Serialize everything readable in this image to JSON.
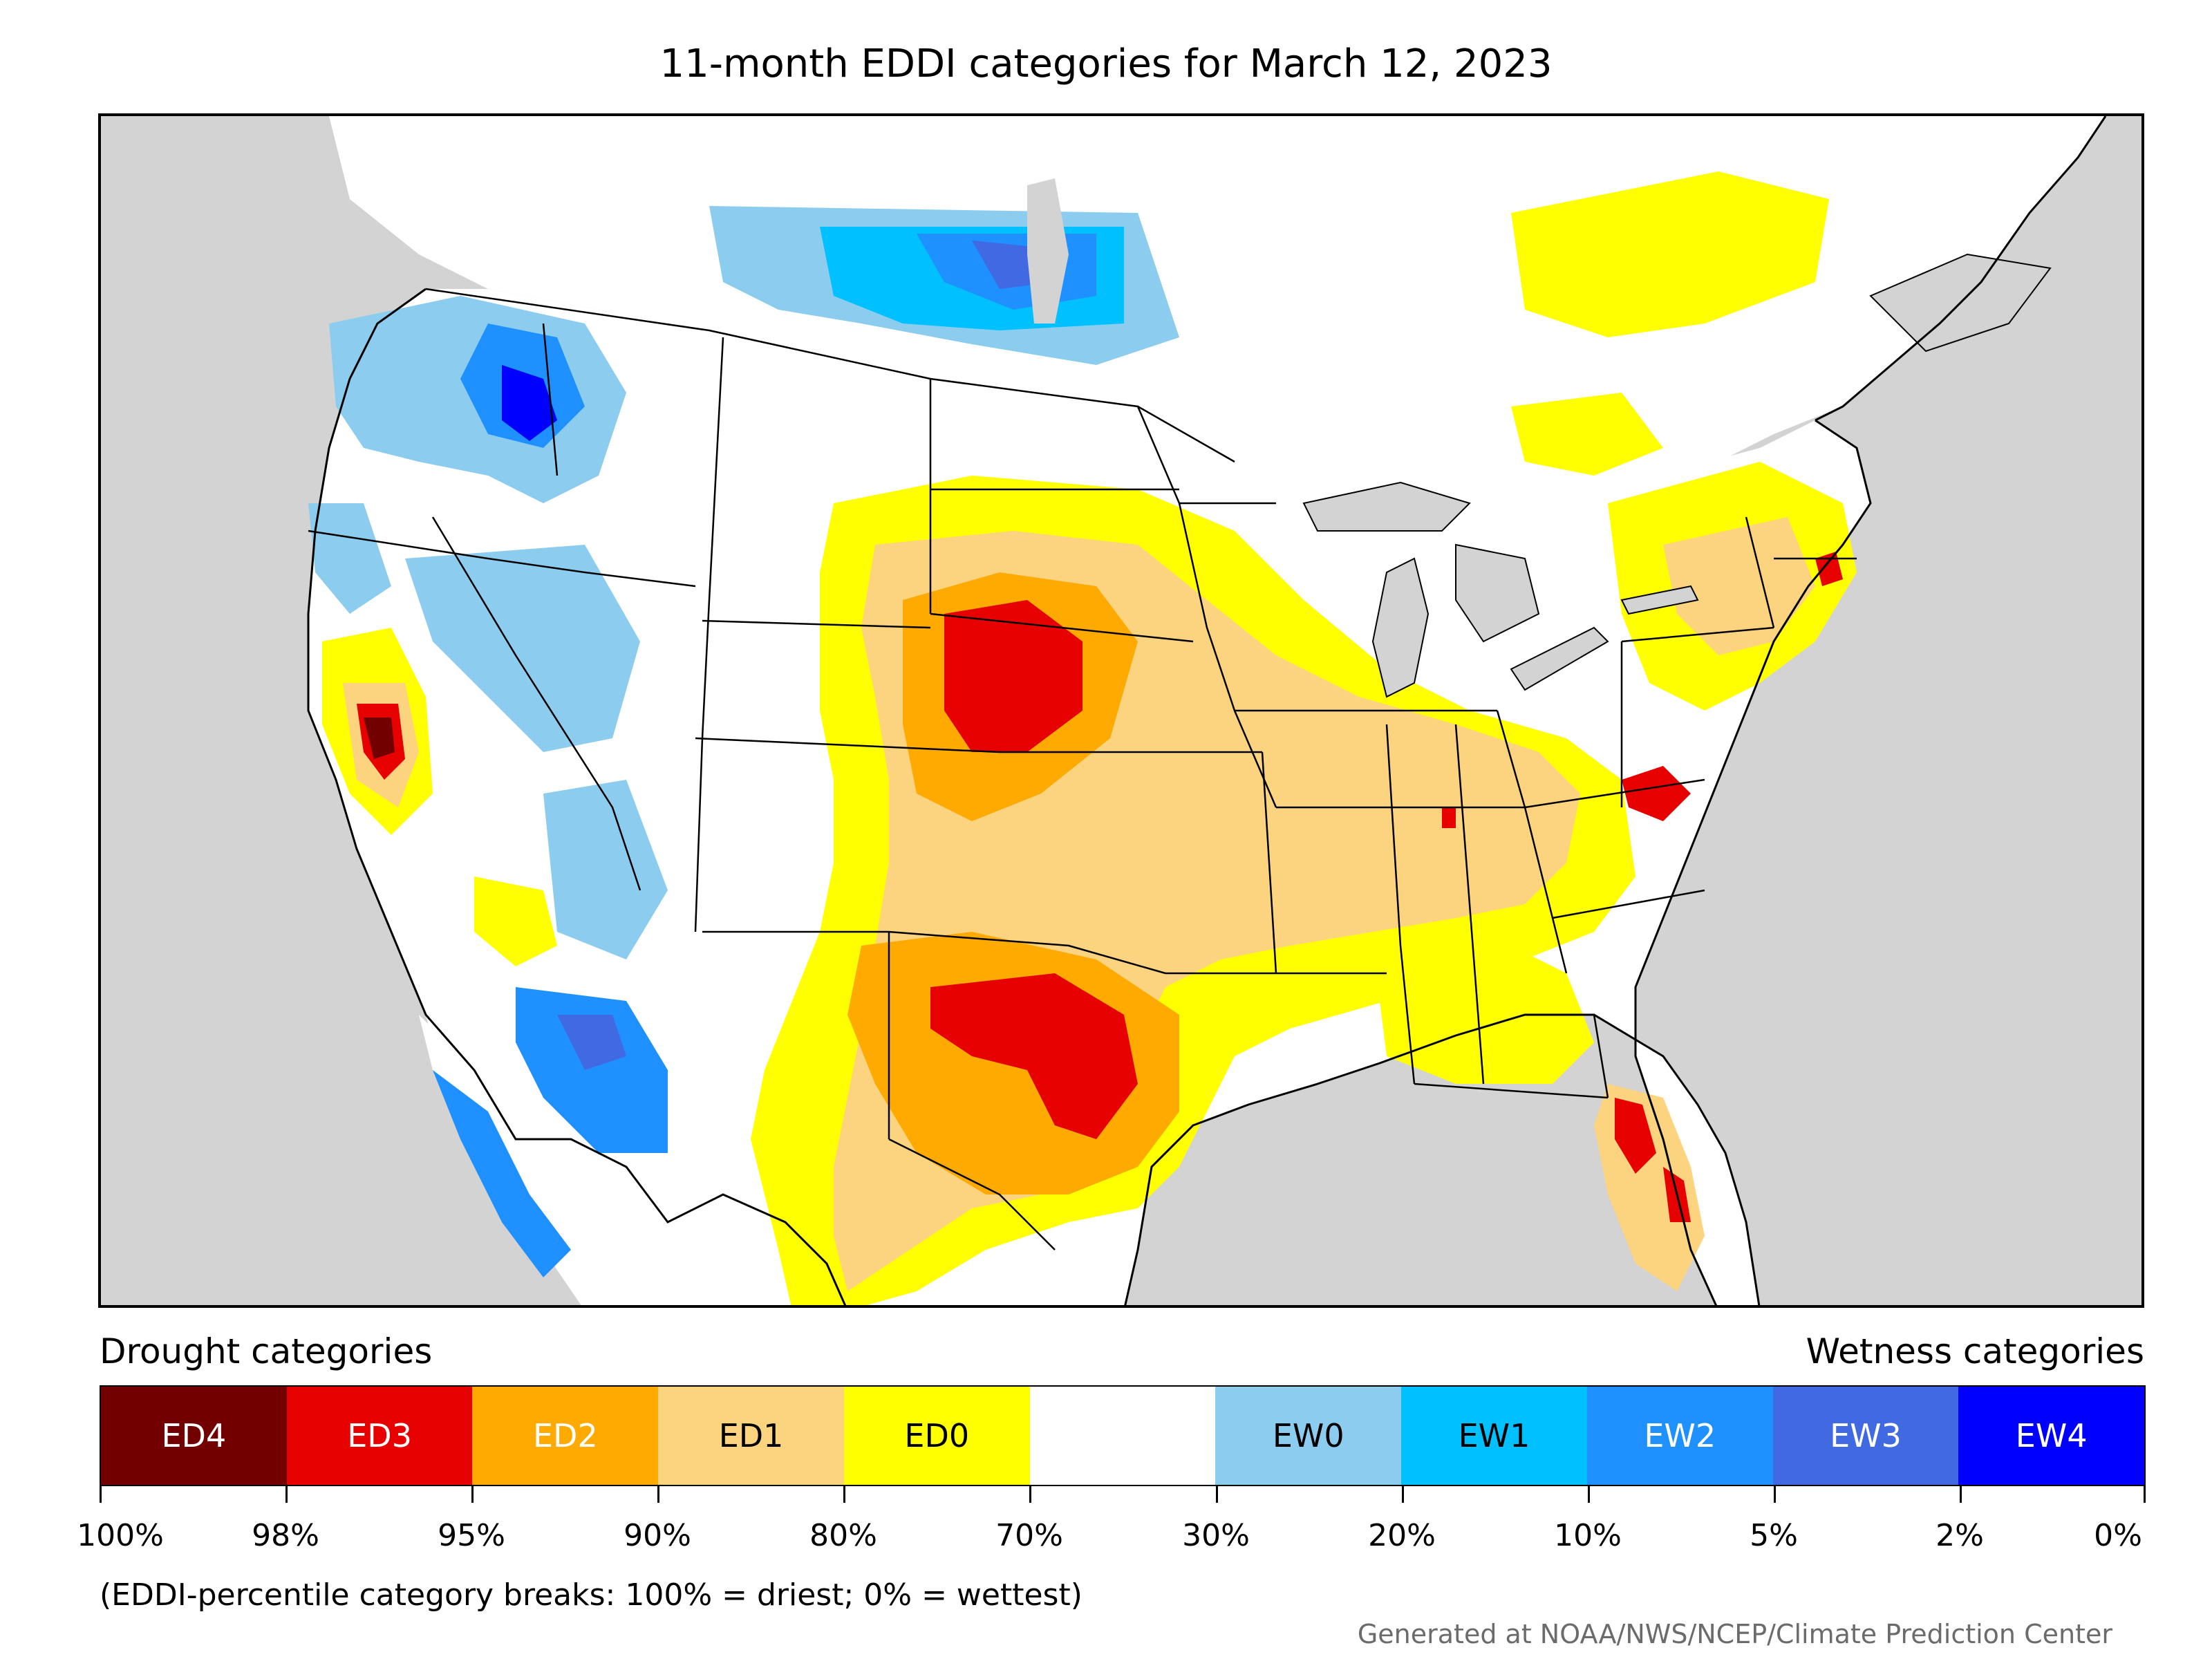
{
  "title": "11-month EDDI categories for March 12, 2023",
  "legend": {
    "drought_label": "Drought categories",
    "wetness_label": "Wetness categories",
    "categories": [
      {
        "label": "ED4",
        "color": "#730000",
        "text_color": "#ffffff"
      },
      {
        "label": "ED3",
        "color": "#e60000",
        "text_color": "#ffffff"
      },
      {
        "label": "ED2",
        "color": "#ffaa00",
        "text_color": "#ffffff"
      },
      {
        "label": "ED1",
        "color": "#fcd37f",
        "text_color": "#000000"
      },
      {
        "label": "ED0",
        "color": "#ffff00",
        "text_color": "#000000"
      },
      {
        "label": "",
        "color": "#ffffff",
        "text_color": "#000000"
      },
      {
        "label": "EW0",
        "color": "#8ccdef",
        "text_color": "#000000"
      },
      {
        "label": "EW1",
        "color": "#00c0ff",
        "text_color": "#000000"
      },
      {
        "label": "EW2",
        "color": "#1e90ff",
        "text_color": "#ffffff"
      },
      {
        "label": "EW3",
        "color": "#4169e1",
        "text_color": "#ffffff"
      },
      {
        "label": "EW4",
        "color": "#0000ff",
        "text_color": "#ffffff"
      }
    ],
    "tick_labels": [
      "100%",
      "98%",
      "95%",
      "90%",
      "80%",
      "70%",
      "30%",
      "20%",
      "10%",
      "5%",
      "2%",
      "0%"
    ]
  },
  "note": "(EDDI-percentile category breaks: 100% = driest; 0% = wettest)",
  "credit": "Generated at NOAA/NWS/NCEP/Climate Prediction Center",
  "colors": {
    "ocean": "#d3d3d3",
    "land_default": "#ffffff"
  }
}
